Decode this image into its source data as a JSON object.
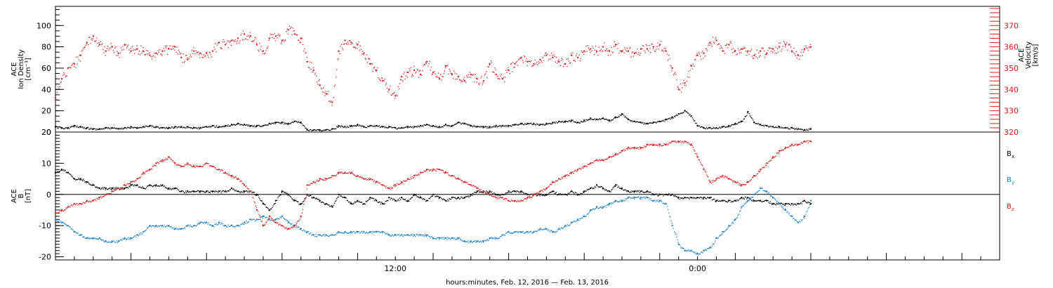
{
  "chart_data": [
    {
      "type": "scatter",
      "panel": "top",
      "left_axis": {
        "label_lines": [
          "ACE",
          "Ion Density",
          "[cm⁻³]"
        ],
        "ylim": [
          0,
          118
        ],
        "ticks": [
          0,
          20,
          40,
          60,
          80,
          100
        ],
        "tick_labels": [
          "0",
          "20",
          "40",
          "60",
          "80",
          "100"
        ]
      },
      "right_axis": {
        "label_lines": [
          "ACE",
          "Velocity",
          "[km/s]"
        ],
        "ylim": [
          320,
          379
        ],
        "ticks": [
          320,
          330,
          340,
          350,
          360,
          370
        ],
        "tick_labels": [
          "320",
          "330",
          "340",
          "350",
          "360",
          "370"
        ],
        "color": "#e11a1a"
      },
      "x": [
        0,
        1,
        2,
        3,
        4,
        5,
        6,
        7,
        8,
        9,
        10,
        11,
        12,
        13,
        14,
        15,
        16,
        17,
        18,
        19,
        20,
        21,
        22,
        23,
        24,
        25,
        26,
        27,
        28,
        29,
        30,
        31,
        32,
        33,
        34,
        35,
        36,
        37,
        38,
        39,
        40,
        41,
        42,
        43,
        44,
        45,
        46,
        47,
        48,
        49,
        50,
        51,
        52,
        53,
        54,
        55,
        56,
        57,
        58,
        59,
        60,
        61,
        62,
        63,
        64,
        65,
        66,
        67,
        68,
        69,
        70,
        71,
        72,
        73,
        74,
        75,
        76,
        77,
        78,
        79,
        80,
        81,
        82,
        83,
        84,
        85,
        86,
        87,
        88,
        89,
        90,
        91,
        92,
        93,
        94,
        95,
        96,
        97,
        98,
        99,
        100,
        101,
        102,
        103,
        104,
        105,
        106,
        107,
        108,
        109,
        110,
        111,
        112,
        113,
        114,
        115,
        116,
        117,
        118,
        119,
        120
      ],
      "series": [
        {
          "color": "#000000",
          "axis": "left",
          "values": [
            5,
            4,
            4,
            6,
            5,
            4,
            3,
            3,
            4,
            4,
            3,
            4,
            5,
            4,
            5,
            6,
            5,
            4,
            4,
            5,
            5,
            5,
            4,
            4,
            5,
            6,
            5,
            6,
            7,
            8,
            7,
            6,
            6,
            6,
            8,
            9,
            9,
            8,
            10,
            9,
            2,
            2,
            2,
            2,
            3,
            6,
            5,
            6,
            7,
            5,
            6,
            6,
            5,
            5,
            4,
            4,
            5,
            5,
            6,
            7,
            6,
            5,
            7,
            6,
            9,
            8,
            6,
            5,
            5,
            5,
            6,
            6,
            6,
            7,
            8,
            8,
            8,
            7,
            8,
            9,
            10,
            10,
            11,
            9,
            11,
            13,
            12,
            13,
            11,
            14,
            17,
            12,
            10,
            9,
            8,
            9,
            10,
            12,
            14,
            17,
            20,
            15,
            6,
            4,
            4,
            4,
            5,
            6,
            8,
            10,
            19,
            9,
            7,
            6,
            5,
            5,
            4,
            4,
            3,
            2,
            3
          ]
        },
        {
          "color": "#e11a1a",
          "axis": "right",
          "values": [
            336,
            345,
            350,
            352,
            356,
            362,
            365,
            361,
            358,
            360,
            357,
            361,
            358,
            359,
            358,
            356,
            357,
            358,
            359,
            360,
            355,
            354,
            358,
            357,
            357,
            358,
            362,
            361,
            363,
            364,
            366,
            365,
            361,
            358,
            364,
            365,
            363,
            368,
            366,
            364,
            353,
            349,
            342,
            338,
            334,
            358,
            363,
            362,
            361,
            357,
            352,
            349,
            344,
            340,
            337,
            346,
            348,
            349,
            347,
            353,
            348,
            345,
            351,
            347,
            346,
            344,
            347,
            345,
            344,
            352,
            347,
            345,
            349,
            352,
            355,
            353,
            352,
            354,
            356,
            355,
            353,
            352,
            356,
            355,
            358,
            359,
            358,
            360,
            358,
            361,
            358,
            358,
            357,
            359,
            359,
            360,
            361,
            358,
            350,
            340,
            343,
            351,
            356,
            357,
            362,
            363,
            358,
            361,
            358,
            359,
            358,
            356,
            358,
            357,
            359,
            360,
            361,
            358,
            356,
            359,
            360
          ]
        }
      ],
      "grid": false
    },
    {
      "type": "scatter",
      "panel": "bottom",
      "left_axis": {
        "label_lines": [
          "ACE",
          "B",
          "[nT]"
        ],
        "ylim": [
          -21,
          20
        ],
        "ticks": [
          -20,
          -10,
          0,
          10,
          20
        ],
        "tick_labels": [
          "-20",
          "-10",
          "0",
          "10",
          "20"
        ]
      },
      "zero_line": 0,
      "x": [
        0,
        1,
        2,
        3,
        4,
        5,
        6,
        7,
        8,
        9,
        10,
        11,
        12,
        13,
        14,
        15,
        16,
        17,
        18,
        19,
        20,
        21,
        22,
        23,
        24,
        25,
        26,
        27,
        28,
        29,
        30,
        31,
        32,
        33,
        34,
        35,
        36,
        37,
        38,
        39,
        40,
        41,
        42,
        43,
        44,
        45,
        46,
        47,
        48,
        49,
        50,
        51,
        52,
        53,
        54,
        55,
        56,
        57,
        58,
        59,
        60,
        61,
        62,
        63,
        64,
        65,
        66,
        67,
        68,
        69,
        70,
        71,
        72,
        73,
        74,
        75,
        76,
        77,
        78,
        79,
        80,
        81,
        82,
        83,
        84,
        85,
        86,
        87,
        88,
        89,
        90,
        91,
        92,
        93,
        94,
        95,
        96,
        97,
        98,
        99,
        100,
        101,
        102,
        103,
        104,
        105,
        106,
        107,
        108,
        109,
        110,
        111,
        112,
        113,
        114,
        115,
        116,
        117,
        118,
        119,
        120
      ],
      "series": [
        {
          "name": "B",
          "subscript": "x",
          "color": "#000000",
          "values": [
            7,
            8,
            7,
            5,
            5,
            4,
            3,
            2,
            2,
            2,
            2,
            2,
            3,
            3,
            2,
            3,
            3,
            3,
            2,
            2,
            1,
            1,
            1,
            1,
            1,
            1,
            1,
            1,
            2,
            1,
            1,
            1,
            0,
            -3,
            -5,
            -2,
            1,
            0,
            -2,
            -3,
            0,
            -1,
            -2,
            -3,
            -4,
            0,
            -1,
            -3,
            -2,
            -3,
            -1,
            -2,
            -3,
            -1,
            -2,
            -1,
            -2,
            0,
            -1,
            -2,
            0,
            -1,
            -2,
            -1,
            -1,
            -1,
            0,
            1,
            1,
            1,
            0,
            0,
            1,
            1,
            1,
            0,
            0,
            0,
            0,
            1,
            0,
            0,
            1,
            0,
            1,
            2,
            3,
            2,
            1,
            3,
            2,
            1,
            1,
            1,
            1,
            0,
            0,
            0,
            0,
            -1,
            -1,
            -1,
            -1,
            -1,
            -1,
            -2,
            -2,
            -2,
            -2,
            -1,
            -1,
            -2,
            -2,
            -2,
            -3,
            -3,
            -3,
            -3,
            -3,
            -2,
            -3
          ]
        },
        {
          "name": "B",
          "subscript": "y",
          "color": "#1a80d0",
          "values": [
            -8,
            -9,
            -10,
            -12,
            -13,
            -14,
            -14,
            -14,
            -15,
            -15,
            -15,
            -14,
            -14,
            -13,
            -12,
            -10,
            -10,
            -10,
            -10,
            -11,
            -11,
            -10,
            -10,
            -9,
            -9,
            -10,
            -9,
            -10,
            -10,
            -10,
            -9,
            -8,
            -8,
            -7,
            -8,
            -8,
            -7,
            -9,
            -10,
            -11,
            -12,
            -13,
            -13,
            -13,
            -13,
            -12,
            -12,
            -12,
            -12,
            -12,
            -12,
            -12,
            -12,
            -13,
            -13,
            -13,
            -13,
            -13,
            -13,
            -13,
            -14,
            -14,
            -14,
            -14,
            -14,
            -15,
            -15,
            -15,
            -15,
            -14,
            -14,
            -13,
            -12,
            -12,
            -12,
            -12,
            -12,
            -11,
            -11,
            -12,
            -11,
            -10,
            -9,
            -8,
            -7,
            -5,
            -4,
            -4,
            -3,
            -2,
            -2,
            -1,
            -1,
            -1,
            -1,
            -2,
            -2,
            -3,
            -10,
            -16,
            -18,
            -18,
            -19,
            -18,
            -17,
            -14,
            -12,
            -10,
            -8,
            -4,
            -2,
            0,
            2,
            1,
            -1,
            -3,
            -5,
            -7,
            -9,
            -7,
            -2
          ]
        },
        {
          "name": "B",
          "subscript": "z",
          "color": "#e11a1a",
          "values": [
            -6,
            -5,
            -4,
            -3,
            -3,
            -2,
            -2,
            -1,
            0,
            1,
            2,
            3,
            4,
            5,
            7,
            8,
            10,
            11,
            12,
            10,
            9,
            10,
            9,
            9,
            10,
            9,
            8,
            7,
            6,
            5,
            3,
            1,
            -5,
            -10,
            -7,
            -9,
            -10,
            -11,
            -10,
            -7,
            3,
            4,
            5,
            5,
            6,
            7,
            7,
            7,
            6,
            5,
            5,
            4,
            3,
            2,
            3,
            4,
            5,
            6,
            7,
            8,
            8,
            8,
            7,
            6,
            5,
            4,
            3,
            2,
            1,
            0,
            -1,
            -1,
            -2,
            -2,
            -2,
            -1,
            0,
            1,
            2,
            4,
            5,
            6,
            7,
            8,
            9,
            10,
            11,
            11,
            12,
            13,
            14,
            15,
            15,
            15,
            16,
            16,
            16,
            16,
            17,
            17,
            17,
            16,
            12,
            8,
            4,
            5,
            6,
            5,
            4,
            3,
            4,
            6,
            8,
            10,
            12,
            14,
            15,
            16,
            16,
            17,
            17
          ]
        }
      ],
      "legend_placement": "right",
      "grid": false
    }
  ],
  "x_axis": {
    "tick_labels": [
      "12:00",
      "0:00"
    ],
    "tick_positions": [
      54,
      102
    ],
    "label": "hours:minutes, Feb. 12, 2016 — Feb. 13, 2016"
  }
}
